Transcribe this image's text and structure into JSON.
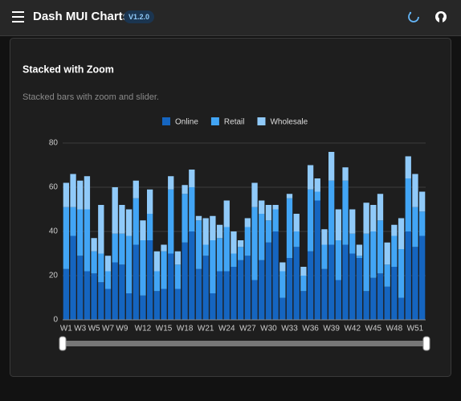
{
  "header": {
    "title": "Dash MUI Charts",
    "version": "V1.2.0"
  },
  "card": {
    "title": "Stacked with Zoom",
    "subtitle": "Stacked bars with zoom and slider."
  },
  "chart_data": {
    "type": "stacked-bar",
    "categories": [
      "W1",
      null,
      "W3",
      null,
      "W5",
      null,
      "W7",
      null,
      "W9",
      null,
      null,
      "W12",
      null,
      null,
      "W15",
      null,
      null,
      "W18",
      null,
      null,
      "W21",
      null,
      null,
      "W24",
      null,
      null,
      "W27",
      null,
      null,
      "W30",
      null,
      null,
      "W33",
      null,
      null,
      "W36",
      null,
      null,
      "W39",
      null,
      null,
      "W42",
      null,
      null,
      "W45",
      null,
      null,
      "W48",
      null,
      null,
      "W51",
      null
    ],
    "series": [
      {
        "name": "Online",
        "color": "#1565c0",
        "values": [
          23,
          38,
          29,
          22,
          21,
          17,
          14,
          26,
          25,
          12,
          34,
          11,
          36,
          13,
          14,
          30,
          14,
          35,
          40,
          23,
          29,
          12,
          22,
          22,
          24,
          27,
          29,
          18,
          27,
          35,
          40,
          10,
          28,
          33,
          13,
          31,
          54,
          23,
          34,
          18,
          34,
          30,
          28,
          13,
          19,
          21,
          15,
          24,
          10,
          40,
          33,
          38
        ]
      },
      {
        "name": "Retail",
        "color": "#42a5f5",
        "values": [
          28,
          13,
          21,
          28,
          10,
          13,
          8,
          13,
          14,
          26,
          21,
          25,
          12,
          9,
          17,
          29,
          11,
          22,
          20,
          22,
          5,
          24,
          15,
          20,
          6,
          6,
          13,
          33,
          21,
          10,
          10,
          12,
          27,
          7,
          7,
          28,
          4,
          11,
          29,
          18,
          29,
          9,
          1,
          26,
          21,
          24,
          10,
          14,
          22,
          24,
          18,
          11
        ]
      },
      {
        "name": "Wholesale",
        "color": "#90caf9",
        "values": [
          11,
          15,
          13,
          15,
          6,
          22,
          7,
          21,
          13,
          12,
          8,
          9,
          11,
          9,
          3,
          6,
          6,
          4,
          8,
          2,
          12,
          11,
          6,
          12,
          10,
          3,
          4,
          11,
          6,
          7,
          2,
          4,
          2,
          8,
          4,
          11,
          6,
          7,
          13,
          14,
          6,
          11,
          5,
          14,
          12,
          12,
          10,
          5,
          14,
          10,
          15,
          9
        ]
      }
    ],
    "ylim": [
      0,
      80
    ],
    "yticks": [
      0,
      20,
      40,
      60,
      80
    ],
    "grid": true
  }
}
